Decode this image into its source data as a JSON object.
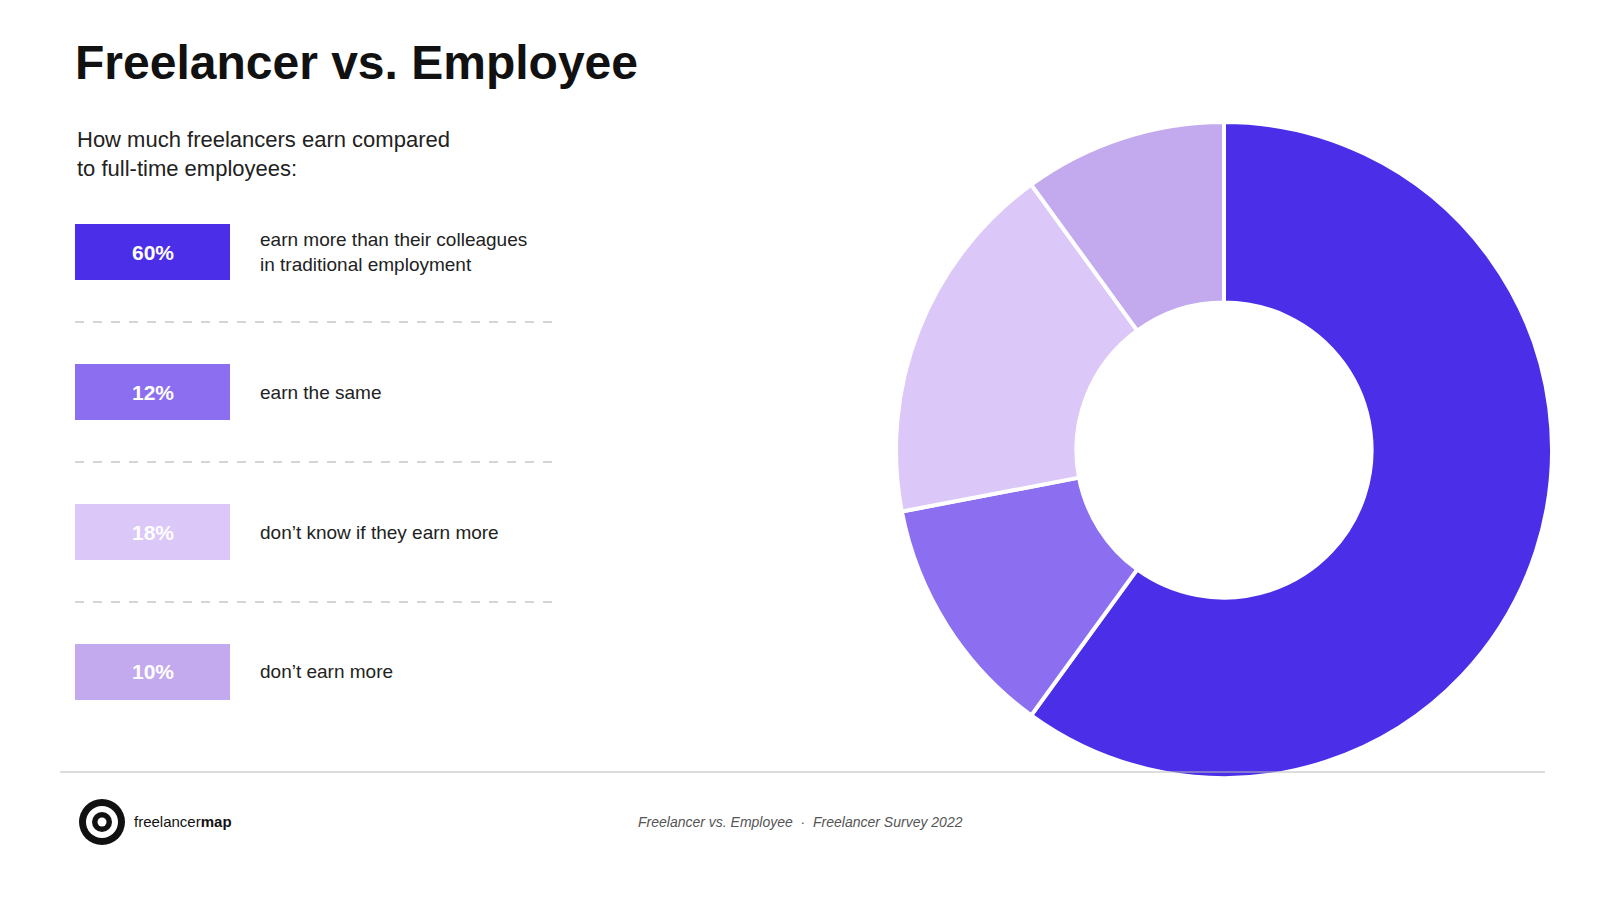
{
  "chart_data": {
    "type": "donut",
    "title": "Freelancer vs. Employee",
    "subtitle": "How much freelancers earn compared\nto full-time employees:",
    "categories": [
      "earn more than their colleagues\nin traditional employment",
      "earn the same",
      "don’t know if they earn more",
      "don’t earn more"
    ],
    "values": [
      60,
      12,
      18,
      10
    ],
    "value_labels": [
      "60%",
      "12%",
      "18%",
      "10%"
    ],
    "colors": [
      "#4B2FE8",
      "#8B6FF0",
      "#DBC8F8",
      "#C3AAEE"
    ],
    "annotations": [
      "Freelancer vs. Employee  ·  Freelancer Survey 2022",
      "freelancer",
      "map"
    ]
  }
}
